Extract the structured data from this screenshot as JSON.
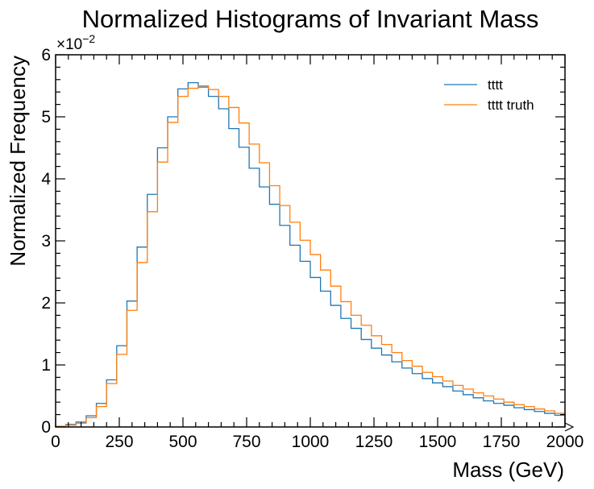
{
  "chart_data": {
    "type": "line",
    "title": "Normalized Histograms of Invariant Mass",
    "xlabel": "Mass (GeV)",
    "ylabel": "Normalized Frequency",
    "xlim": [
      0,
      2000
    ],
    "ylim": [
      0,
      0.06
    ],
    "y_scale_label": "×10",
    "y_scale_exponent": "−2",
    "x_ticks": [
      0,
      250,
      500,
      750,
      1000,
      1250,
      1500,
      1750,
      2000
    ],
    "x_tick_labels": [
      "0",
      "250",
      "500",
      "750",
      "1000",
      "1250",
      "1500",
      "1750",
      "2000"
    ],
    "y_ticks": [
      0,
      0.01,
      0.02,
      0.03,
      0.04,
      0.05,
      0.06
    ],
    "y_tick_labels": [
      "0",
      "1",
      "2",
      "3",
      "4",
      "5",
      "6"
    ],
    "grid": false,
    "legend_position": "top-right",
    "bin_edges": [
      0,
      40,
      80,
      120,
      160,
      200,
      240,
      280,
      320,
      360,
      400,
      440,
      480,
      520,
      560,
      600,
      640,
      680,
      720,
      760,
      800,
      840,
      880,
      920,
      960,
      1000,
      1040,
      1080,
      1120,
      1160,
      1200,
      1240,
      1280,
      1320,
      1360,
      1400,
      1440,
      1480,
      1520,
      1560,
      1600,
      1640,
      1680,
      1720,
      1760,
      1800,
      1840,
      1880,
      1920,
      1960,
      2000
    ],
    "series": [
      {
        "name": "tttt",
        "color": "#1f77b4",
        "values": [
          0.0001,
          0.0004,
          0.0008,
          0.0018,
          0.0038,
          0.0076,
          0.0131,
          0.0203,
          0.029,
          0.0375,
          0.045,
          0.05,
          0.0545,
          0.0555,
          0.0548,
          0.0533,
          0.0513,
          0.0481,
          0.0451,
          0.0417,
          0.0387,
          0.0359,
          0.0325,
          0.0293,
          0.0267,
          0.0241,
          0.0219,
          0.0196,
          0.0175,
          0.0159,
          0.0141,
          0.0127,
          0.0116,
          0.0105,
          0.0095,
          0.0086,
          0.0078,
          0.0071,
          0.0065,
          0.0058,
          0.0052,
          0.0047,
          0.0042,
          0.0038,
          0.0035,
          0.0031,
          0.0028,
          0.0025,
          0.0022,
          0.0019
        ]
      },
      {
        "name": "tttt truth",
        "color": "#ff7f0e",
        "values": [
          0.0001,
          0.0003,
          0.0006,
          0.0015,
          0.0033,
          0.007,
          0.0117,
          0.0188,
          0.0265,
          0.0347,
          0.0427,
          0.0491,
          0.0533,
          0.0546,
          0.055,
          0.0544,
          0.0533,
          0.0515,
          0.049,
          0.0456,
          0.0426,
          0.0389,
          0.0357,
          0.033,
          0.0301,
          0.0278,
          0.0253,
          0.0227,
          0.0202,
          0.018,
          0.0164,
          0.0147,
          0.0133,
          0.012,
          0.0107,
          0.0098,
          0.0088,
          0.0081,
          0.0074,
          0.0067,
          0.0061,
          0.0055,
          0.005,
          0.0045,
          0.004,
          0.0036,
          0.0033,
          0.0029,
          0.0026,
          0.0022
        ]
      }
    ]
  }
}
